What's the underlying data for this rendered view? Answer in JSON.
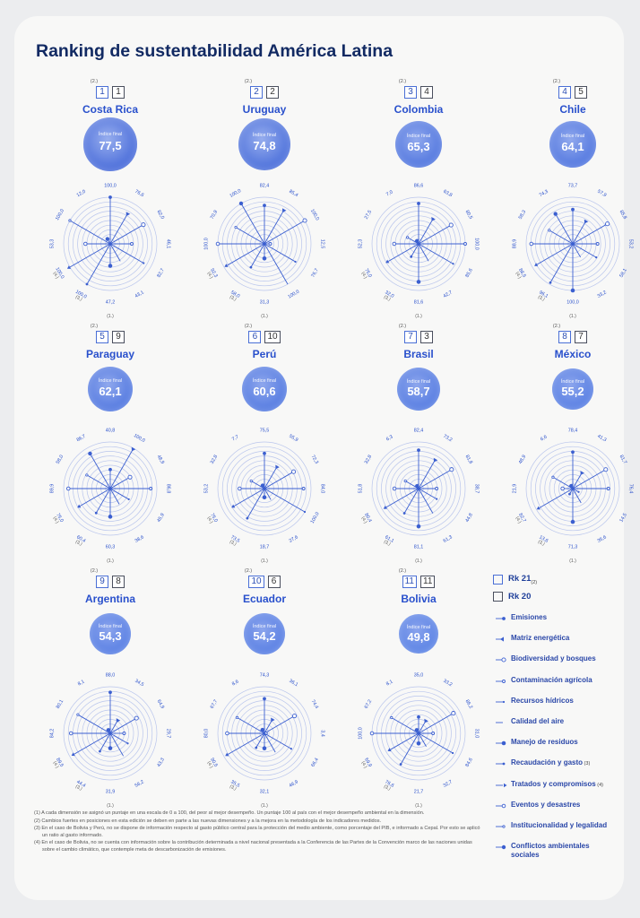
{
  "title": "Ranking de sustentabilidad América Latina",
  "chart_data": {
    "type": "radar",
    "title": "Ranking de sustentabilidad América Latina",
    "rmax": 100,
    "grid": "concentric circles",
    "score_label": "Índice final",
    "rank_note": "(2.)",
    "axis_note": "(1.)",
    "dimensions": [
      "Emisiones",
      "Matriz energética",
      "Biodiversidad y bosques",
      "Contaminación agrícola",
      "Recursos hídricos",
      "Calidad del aire",
      "Manejo de residuos",
      "Recaudación y gasto",
      "Tratados y compromisos",
      "Eventos y desastres",
      "Institucionalidad y legalidad",
      "Conflictos ambientales sociales"
    ],
    "countries": [
      {
        "name": "Costa Rica",
        "rk21": "1",
        "rk20": "1",
        "score": "77,5",
        "values": [
          100.0,
          76.6,
          82.0,
          46.1,
          82.7,
          43.1,
          47.2,
          100.0,
          100.0,
          53.3,
          100.0,
          12.0
        ],
        "labels": [
          "100,0",
          "76,6",
          "82,0",
          "46,1",
          "82,7",
          "43,1",
          "47,2",
          "100,0",
          "100,0",
          "53,3",
          "100,0",
          "12,0"
        ],
        "marks": {
          "7": "(3.)",
          "8": "(4.)"
        }
      },
      {
        "name": "Uruguay",
        "rk21": "2",
        "rk20": "2",
        "score": "74,8",
        "values": [
          82.4,
          85.4,
          100.0,
          12.5,
          76.7,
          100.0,
          31.3,
          58.0,
          92.3,
          100.0,
          70.9,
          100.0
        ],
        "labels": [
          "82,4",
          "85,4",
          "100,0",
          "12,5",
          "76,7",
          "100,0",
          "31,3",
          "58,0",
          "92,3",
          "100,0",
          "70,9",
          "100,0"
        ],
        "marks": {
          "7": "(3.)",
          "8": "(4.)"
        }
      },
      {
        "name": "Colombia",
        "rk21": "3",
        "rk20": "4",
        "score": "65,3",
        "values": [
          86.6,
          63.8,
          80.5,
          100.0,
          85.6,
          42.7,
          81.6,
          32.0,
          75.0,
          52.3,
          27.5,
          7.0
        ],
        "labels": [
          "86,6",
          "63,8",
          "80,5",
          "100,0",
          "85,6",
          "42,7",
          "81,6",
          "32,0",
          "75,0",
          "52,3",
          "27,5",
          "7,0"
        ],
        "marks": {
          "7": "(3.)",
          "8": "(4.)"
        }
      },
      {
        "name": "Chile",
        "rk21": "4",
        "rk20": "5",
        "score": "64,1",
        "values": [
          73.7,
          57.9,
          85.8,
          53.2,
          58.1,
          33.2,
          100.0,
          96.1,
          88.5,
          88.9,
          58.3,
          74.3
        ],
        "labels": [
          "73,7",
          "57,9",
          "85,8",
          "53,2",
          "58,1",
          "33,2",
          "100,0",
          "96,1",
          "88,5",
          "88,9",
          "58,3",
          "74,3"
        ],
        "marks": {
          "7": "(3.)",
          "8": "(4.)"
        }
      },
      {
        "name": "Paraguay",
        "rk21": "5",
        "rk20": "9",
        "score": "62,1",
        "values": [
          40.8,
          100.0,
          48.9,
          86.8,
          45.9,
          38.6,
          60.3,
          60.4,
          75.0,
          89.9,
          58.0,
          86.7
        ],
        "labels": [
          "40,8",
          "100,0",
          "48,9",
          "86,8",
          "45,9",
          "38,6",
          "60,3",
          "60,4",
          "75,0",
          "89,9",
          "58,0",
          "86,7"
        ],
        "marks": {
          "7": "(3.)",
          "8": "(4.)"
        }
      },
      {
        "name": "Perú",
        "rk21": "6",
        "rk20": "10",
        "score": "60,6",
        "values": [
          75.5,
          55.9,
          72.3,
          84.0,
          100.0,
          27.6,
          18.7,
          73.5,
          75.0,
          53.2,
          32.8,
          7.7
        ],
        "labels": [
          "75,5",
          "55,9",
          "72,3",
          "84,0",
          "100,0",
          "27,6",
          "18,7",
          "73,5",
          "75,0",
          "53,2",
          "32,8",
          "7,7"
        ],
        "marks": {
          "7": "(3.)",
          "8": "(4.)"
        }
      },
      {
        "name": "Brasil",
        "rk21": "7",
        "rk20": "3",
        "score": "58,7",
        "values": [
          82.4,
          73.2,
          81.8,
          38.7,
          44.8,
          61.3,
          81.1,
          61.1,
          80.4,
          51.8,
          32.8,
          6.3
        ],
        "labels": [
          "82,4",
          "73,2",
          "81,8",
          "38,7",
          "44,8",
          "61,3",
          "81,1",
          "61,1",
          "80,4",
          "51,8",
          "32,8",
          "6,3"
        ],
        "marks": {
          "7": "(3.)",
          "8": "(4.)"
        }
      },
      {
        "name": "México",
        "rk21": "8",
        "rk20": "7",
        "score": "55,2",
        "values": [
          78.4,
          41.3,
          81.7,
          76.4,
          14.5,
          35.6,
          71.3,
          13.6,
          82.7,
          21.9,
          48.9,
          6.6
        ],
        "labels": [
          "78,4",
          "41,3",
          "81,7",
          "76,4",
          "14,5",
          "35,6",
          "71,3",
          "13,6",
          "82,7",
          "21,9",
          "48,9",
          "6,6"
        ],
        "marks": {
          "7": "(3.)",
          "8": "(4.)"
        }
      },
      {
        "name": "Argentina",
        "rk21": "9",
        "rk20": "8",
        "score": "54,3",
        "values": [
          88.0,
          34.5,
          64.9,
          29.7,
          43.3,
          56.2,
          31.9,
          44.4,
          89.5,
          84.2,
          80.1,
          8.1
        ],
        "labels": [
          "88,0",
          "34,5",
          "64,9",
          "29,7",
          "43,3",
          "56,2",
          "31,9",
          "44,4",
          "89,5",
          "84,2",
          "80,1",
          "8,1"
        ],
        "marks": {
          "7": "(3.)",
          "8": "(4.)"
        }
      },
      {
        "name": "Ecuador",
        "rk21": "10",
        "rk20": "6",
        "score": "54,2",
        "values": [
          74.3,
          36.1,
          74.4,
          3.4,
          66.4,
          46.9,
          32.1,
          35.5,
          90.5,
          80.0,
          67.7,
          8.6
        ],
        "labels": [
          "74,3",
          "36,1",
          "74,4",
          "3,4",
          "66,4",
          "46,9",
          "32,1",
          "35,5",
          "90,5",
          "80,0",
          "67,7",
          "8,6"
        ],
        "marks": {
          "7": "(3.)",
          "8": "(4.)"
        }
      },
      {
        "name": "Bolivia",
        "rk21": "11",
        "rk20": "11",
        "score": "49,8",
        "values": [
          35.0,
          33.2,
          86.2,
          31.0,
          84.6,
          32.7,
          21.7,
          76.6,
          69.9,
          100.0,
          67.2,
          8.1
        ],
        "labels": [
          "35,0",
          "33,2",
          "86,2",
          "31,0",
          "84,6",
          "32,7",
          "21,7",
          "76,6",
          "69,9",
          "100,0",
          "67,2",
          "8,1"
        ],
        "marks": {
          "7": "(3.)",
          "8": "(4.)"
        }
      }
    ]
  },
  "legend": {
    "rk21": "Rk 21",
    "rk21_note": "(2)",
    "rk20": "Rk 20",
    "items": [
      {
        "label": "Emisiones",
        "note": ""
      },
      {
        "label": "Matriz energética",
        "note": ""
      },
      {
        "label": "Biodiversidad y bosques",
        "note": ""
      },
      {
        "label": "Contaminación agrícola",
        "note": ""
      },
      {
        "label": "Recursos hídricos",
        "note": ""
      },
      {
        "label": "Calidad del aire",
        "note": ""
      },
      {
        "label": "Manejo de residuos",
        "note": ""
      },
      {
        "label": "Recaudación y gasto",
        "note": "(3)"
      },
      {
        "label": "Tratados y compromisos",
        "note": "(4)"
      },
      {
        "label": "Eventos y desastres",
        "note": ""
      },
      {
        "label": "Institucionalidad y legalidad",
        "note": ""
      },
      {
        "label": "Conflictos ambientales sociales",
        "note": ""
      }
    ]
  },
  "notes": [
    "(1)  A cada dimensión se asignó un puntaje en una escala de 0 a 100, del peor al mejor desempeño. Un puntaje 100 al país con el mejor desempeño ambiental en la dimensión.",
    "(2)  Cambios fuertes en posiciones en esta edición se deben en parte a las nuevas dimensiones y a la mejora en la metodología de los indicadores medidos.",
    "(3)  En el caso de Bolivia y Perú, no se dispone de información respecto al gasto público central para la protección del medio ambiente, como porcentaje del PIB, e informado a Cepal. Por esto se aplicó un ratio al gasto informado.",
    "(4)  En el caso de Bolivia, no se cuenta con información sobre la contribución determinada a nivel nacional presentada a la Conferencia de las Partes de la Convención marco de las naciones unidas sobre el cambio climático, que contemple meta de descarbonización de emisiones."
  ],
  "colors": {
    "title": "#122a63",
    "accent": "#2950cc",
    "line": "#3b5fd0",
    "grid": "#b9c5ec",
    "prev": "#4a4f5e"
  }
}
